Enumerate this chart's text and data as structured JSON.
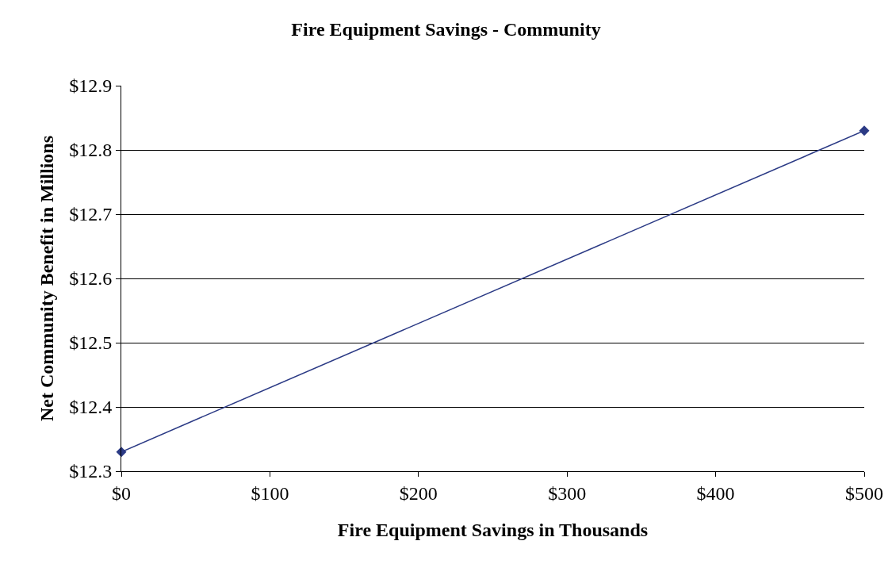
{
  "chart_data": {
    "type": "line",
    "title": "Fire Equipment Savings - Community",
    "xlabel": "Fire Equipment Savings in Thousands",
    "ylabel": "Net Community Benefit in Millions",
    "x": [
      0,
      500
    ],
    "series": [
      {
        "color": "#2b3a85",
        "values": [
          12.33,
          12.83
        ]
      }
    ],
    "xlim": [
      0,
      500
    ],
    "xticks": [
      {
        "value": 0,
        "label": "$0"
      },
      {
        "value": 100,
        "label": "$100"
      },
      {
        "value": 200,
        "label": "$200"
      },
      {
        "value": 300,
        "label": "$300"
      },
      {
        "value": 400,
        "label": "$400"
      },
      {
        "value": 500,
        "label": "$500"
      }
    ],
    "ylim": [
      12.3,
      12.9
    ],
    "yticks": [
      {
        "value": 12.3,
        "label": "$12.3"
      },
      {
        "value": 12.4,
        "label": "$12.4"
      },
      {
        "value": 12.5,
        "label": "$12.5"
      },
      {
        "value": 12.6,
        "label": "$12.6"
      },
      {
        "value": 12.7,
        "label": "$12.7"
      },
      {
        "value": 12.8,
        "label": "$12.8"
      },
      {
        "value": 12.9,
        "label": "$12.9"
      }
    ],
    "grid": "y",
    "marker": "diamond",
    "line_style": "solid"
  }
}
